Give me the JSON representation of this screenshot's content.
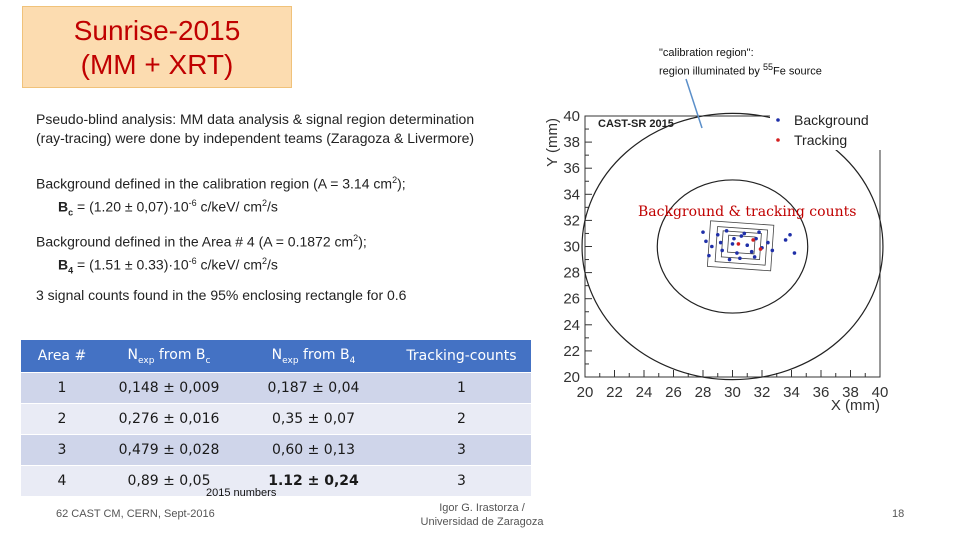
{
  "title": {
    "line1": "Sunrise-2015",
    "line2": "(MM + XRT)"
  },
  "calibration_note": {
    "line1": "\"calibration region\":",
    "line2_pre": "region illuminated by ",
    "line2_sup": "55",
    "line2_post": "Fe source"
  },
  "text": {
    "p1_l1": "Pseudo-blind analysis: MM data analysis & signal region determination",
    "p1_l2": "(ray-tracing) were done by independent teams (Zaragoza & Livermore)",
    "p2_l1_pre": "Background defined in the calibration region (A = 3.14 cm",
    "p2_l1_sup": "2",
    "p2_l1_post": ");",
    "p2_l2_sym": "B",
    "p2_l2_sub": "c",
    "p2_l2_val": " = (1.20 ± 0,07)·10",
    "p2_l2_exp": "-6",
    "p2_l2_unit": " c/keV/ cm",
    "p2_l2_unit_sup": "2",
    "p2_l2_unit_post": "/s",
    "p3_l1_pre": "Background defined in the Area # 4 (A = 0.1872 cm",
    "p3_l1_sup": "2",
    "p3_l1_post": ");",
    "p3_l2_sym": "B",
    "p3_l2_sub": "4",
    "p3_l2_val": " = (1.51 ± 0.33)·10",
    "p3_l2_exp": "-6",
    "p3_l2_unit": " c/keV/ cm",
    "p3_l2_unit_sup": "2",
    "p3_l2_unit_post": "/s",
    "p4": "3 signal counts found in the 95% enclosing rectangle  for 0.6"
  },
  "table": {
    "headers": {
      "area": "Area #",
      "nexp_c_pre": "N",
      "nexp_c_sub": "exp",
      "nexp_c_mid": " from B",
      "nexp_c_sub2": "c",
      "nexp_4_pre": "N",
      "nexp_4_sub": "exp",
      "nexp_4_mid": " from B",
      "nexp_4_sub2": "4",
      "tracking": "Tracking-counts"
    },
    "rows": [
      [
        "1",
        "0,148 ± 0,009",
        "0,187 ± 0,04",
        "1"
      ],
      [
        "2",
        "0,276 ± 0,016",
        "0,35 ± 0,07",
        "2"
      ],
      [
        "3",
        "0,479 ± 0,028",
        "0,60 ± 0,13",
        "3"
      ],
      [
        "4",
        "0,89 ± 0,05",
        "1.12 ± 0,24",
        "3"
      ]
    ],
    "caption": "2015 numbers"
  },
  "footer": {
    "left": "62 CAST CM, CERN, Sept-2016",
    "mid_l1": "Igor G. Irastorza /",
    "mid_l2": "Universidad de Zaragoza",
    "page": "18"
  },
  "chart_data": {
    "type": "scatter",
    "title": "CAST-SR 2015",
    "xlabel": "X (mm)",
    "ylabel": "Y (mm)",
    "xlim": [
      20,
      40
    ],
    "ylim": [
      20,
      40
    ],
    "xticks": [
      "20",
      "22",
      "24",
      "26",
      "28",
      "30",
      "32",
      "34",
      "36",
      "38",
      "40"
    ],
    "yticks": [
      "20",
      "22",
      "24",
      "26",
      "28",
      "30",
      "32",
      "34",
      "36",
      "38",
      "40"
    ],
    "legend_position": "top-right",
    "overlay_label": "Background & tracking counts",
    "colors": {
      "background": "#1f2fa8",
      "tracking": "#d42020",
      "axis": "#333333"
    },
    "series": [
      {
        "name": "Background",
        "points": [
          [
            28.2,
            30.4
          ],
          [
            28.6,
            30.0
          ],
          [
            29.0,
            30.9
          ],
          [
            29.3,
            29.7
          ],
          [
            29.6,
            31.2
          ],
          [
            30.0,
            30.2
          ],
          [
            30.3,
            29.5
          ],
          [
            30.6,
            30.8
          ],
          [
            31.0,
            30.1
          ],
          [
            31.3,
            29.6
          ],
          [
            31.6,
            30.6
          ],
          [
            32.0,
            29.9
          ],
          [
            28.4,
            29.3
          ],
          [
            29.8,
            29.0
          ],
          [
            30.8,
            31.0
          ],
          [
            31.8,
            31.1
          ],
          [
            32.4,
            30.3
          ],
          [
            30.1,
            30.6
          ],
          [
            29.2,
            30.3
          ],
          [
            31.5,
            29.2
          ],
          [
            33.6,
            30.5
          ],
          [
            34.2,
            29.5
          ],
          [
            33.9,
            30.9
          ],
          [
            28.0,
            31.1
          ],
          [
            30.5,
            29.1
          ],
          [
            32.7,
            29.7
          ]
        ]
      },
      {
        "name": "Tracking",
        "points": [
          [
            30.4,
            30.2
          ],
          [
            31.4,
            30.5
          ],
          [
            31.9,
            29.8
          ]
        ]
      }
    ],
    "regions": [
      {
        "name": "calibration circle",
        "center": [
          30,
          30
        ],
        "radius": 10.2
      },
      {
        "name": "signal circle",
        "center": [
          30,
          30
        ],
        "radius": 5.1
      }
    ],
    "rectangles": [
      {
        "name": "area-1",
        "x": [
          29.7,
          31.5
        ],
        "y": [
          29.5,
          30.8
        ]
      },
      {
        "name": "area-2",
        "x": [
          29.3,
          31.9
        ],
        "y": [
          29.1,
          31.1
        ]
      },
      {
        "name": "area-3",
        "x": [
          28.9,
          32.3
        ],
        "y": [
          28.7,
          31.4
        ]
      },
      {
        "name": "area-4",
        "x": [
          28.4,
          32.7
        ],
        "y": [
          28.3,
          31.8
        ]
      }
    ]
  }
}
